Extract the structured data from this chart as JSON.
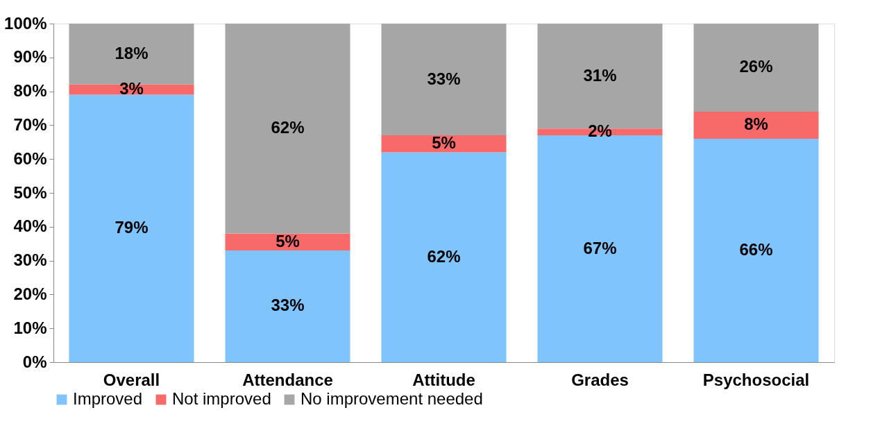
{
  "chart_data": {
    "type": "bar",
    "stacked": true,
    "categories": [
      "Overall",
      "Attendance",
      "Attitude",
      "Grades",
      "Psychosocial"
    ],
    "series": [
      {
        "name": "Improved",
        "color": "#7fc4fc",
        "values": [
          79,
          33,
          62,
          67,
          66
        ],
        "value_labels": [
          "79%",
          "33%",
          "62%",
          "67%",
          "66%"
        ]
      },
      {
        "name": "Not improved",
        "color": "#f86a6a",
        "values": [
          3,
          5,
          5,
          2,
          8
        ],
        "value_labels": [
          "3%",
          "5%",
          "5%",
          "2%",
          "8%"
        ]
      },
      {
        "name": "No improvement needed",
        "color": "#a6a6a6",
        "values": [
          18,
          62,
          33,
          31,
          26
        ],
        "value_labels": [
          "18%",
          "62%",
          "33%",
          "31%",
          "26%"
        ]
      }
    ],
    "ylim": [
      0,
      100
    ],
    "yticks": [
      {
        "value": 0,
        "label": "0%"
      },
      {
        "value": 10,
        "label": "10%"
      },
      {
        "value": 20,
        "label": "20%"
      },
      {
        "value": 30,
        "label": "30%"
      },
      {
        "value": 40,
        "label": "40%"
      },
      {
        "value": 50,
        "label": "50%"
      },
      {
        "value": 60,
        "label": "60%"
      },
      {
        "value": 70,
        "label": "70%"
      },
      {
        "value": 80,
        "label": "80%"
      },
      {
        "value": 90,
        "label": "90%"
      },
      {
        "value": 100,
        "label": "100%"
      }
    ],
    "grid": false,
    "legend": "bottom"
  }
}
